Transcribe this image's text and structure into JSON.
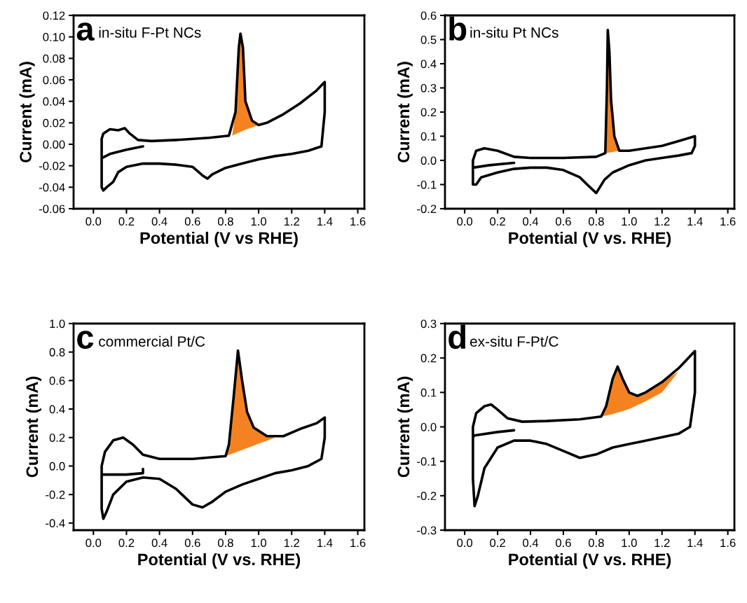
{
  "chart_data": [
    {
      "type": "line",
      "xlabel": "Potential (V vs RHE)",
      "ylabel": "Current (mA)",
      "annotations": [
        "a",
        "in-situ F-Pt NCs"
      ],
      "xlim": [
        -0.12,
        1.64
      ],
      "xticks": [
        {
          "value": 0,
          "label": "0.0"
        },
        {
          "value": 0.2,
          "label": "0.2"
        },
        {
          "value": 0.4,
          "label": "0.4"
        },
        {
          "value": 0.6,
          "label": "0.6"
        },
        {
          "value": 0.8,
          "label": "0.8"
        },
        {
          "value": 1.0,
          "label": "1.0"
        },
        {
          "value": 1.2,
          "label": "1.2"
        },
        {
          "value": 1.4,
          "label": "1.4"
        },
        {
          "value": 1.6,
          "label": "1.6"
        }
      ],
      "ylim": [
        -0.06,
        0.12
      ],
      "yticks": [
        {
          "value": -0.06,
          "label": "-0.06"
        },
        {
          "value": -0.04,
          "label": "-0.04"
        },
        {
          "value": -0.02,
          "label": "-0.02"
        },
        {
          "value": 0,
          "label": "0.00"
        },
        {
          "value": 0.02,
          "label": "0.02"
        },
        {
          "value": 0.04,
          "label": "0.04"
        },
        {
          "value": 0.06,
          "label": "0.06"
        },
        {
          "value": 0.08,
          "label": "0.08"
        },
        {
          "value": 0.1,
          "label": "0.10"
        },
        {
          "value": 0.12,
          "label": "0.12"
        }
      ],
      "series": [
        {
          "color": "#000000",
          "x": [
            0.3,
            0.2,
            0.1,
            0.05,
            0.05,
            0.06,
            0.1,
            0.15,
            0.19,
            0.22,
            0.27,
            0.35,
            0.5,
            0.7,
            0.82,
            0.86,
            0.88,
            0.89,
            0.905,
            0.92,
            0.96,
            1.0,
            1.05,
            1.15,
            1.25,
            1.35,
            1.4,
            1.4,
            1.38,
            1.3,
            1.2,
            1.1,
            1.0,
            0.9,
            0.8,
            0.72,
            0.69,
            0.66,
            0.6,
            0.5,
            0.4,
            0.3,
            0.2,
            0.15,
            0.12,
            0.08,
            0.06,
            0.05,
            0.05
          ],
          "values": [
            -0.002,
            -0.005,
            -0.009,
            -0.013,
            0.005,
            0.01,
            0.014,
            0.013,
            0.015,
            0.01,
            0.004,
            0.003,
            0.004,
            0.006,
            0.008,
            0.03,
            0.09,
            0.103,
            0.09,
            0.04,
            0.022,
            0.018,
            0.02,
            0.028,
            0.038,
            0.05,
            0.058,
            0.03,
            -0.002,
            -0.006,
            -0.009,
            -0.011,
            -0.014,
            -0.018,
            -0.022,
            -0.028,
            -0.032,
            -0.029,
            -0.021,
            -0.019,
            -0.018,
            -0.018,
            -0.021,
            -0.026,
            -0.035,
            -0.04,
            -0.043,
            -0.04,
            -0.005
          ]
        },
        {
          "type": "area",
          "color": "#f58220",
          "x": [
            0.84,
            0.86,
            0.88,
            0.89,
            0.905,
            0.92,
            0.96,
            1.0,
            0.92,
            0.88
          ],
          "values": [
            0.008,
            0.03,
            0.09,
            0.103,
            0.09,
            0.04,
            0.022,
            0.018,
            0.0135,
            0.011
          ]
        }
      ]
    },
    {
      "type": "line",
      "xlabel": "Potential (V vs. RHE)",
      "ylabel": "Current (mA)",
      "annotations": [
        "b",
        "in-situ Pt NCs"
      ],
      "xlim": [
        -0.12,
        1.64
      ],
      "xticks": [
        {
          "value": 0,
          "label": "0.0"
        },
        {
          "value": 0.2,
          "label": "0.2"
        },
        {
          "value": 0.4,
          "label": "0.4"
        },
        {
          "value": 0.6,
          "label": "0.6"
        },
        {
          "value": 0.8,
          "label": "0.8"
        },
        {
          "value": 1.0,
          "label": "1.0"
        },
        {
          "value": 1.2,
          "label": "1.2"
        },
        {
          "value": 1.4,
          "label": "1.4"
        },
        {
          "value": 1.6,
          "label": "1.6"
        }
      ],
      "ylim": [
        -0.2,
        0.6
      ],
      "yticks": [
        {
          "value": -0.2,
          "label": "-0.2"
        },
        {
          "value": -0.1,
          "label": "-0.1"
        },
        {
          "value": 0,
          "label": "0.0"
        },
        {
          "value": 0.1,
          "label": "0.1"
        },
        {
          "value": 0.2,
          "label": "0.2"
        },
        {
          "value": 0.3,
          "label": "0.3"
        },
        {
          "value": 0.4,
          "label": "0.4"
        },
        {
          "value": 0.5,
          "label": "0.5"
        },
        {
          "value": 0.6,
          "label": "0.6"
        }
      ],
      "series": [
        {
          "color": "#000000",
          "x": [
            0.3,
            0.15,
            0.05,
            0.05,
            0.07,
            0.12,
            0.2,
            0.3,
            0.4,
            0.6,
            0.8,
            0.855,
            0.865,
            0.87,
            0.88,
            0.89,
            0.91,
            0.94,
            1.0,
            1.1,
            1.2,
            1.3,
            1.4,
            1.4,
            1.38,
            1.3,
            1.2,
            1.1,
            1.0,
            0.9,
            0.85,
            0.8,
            0.76,
            0.7,
            0.6,
            0.5,
            0.4,
            0.3,
            0.2,
            0.1,
            0.07,
            0.05,
            0.05
          ],
          "values": [
            -0.01,
            -0.02,
            -0.03,
            0.0,
            0.04,
            0.05,
            0.04,
            0.015,
            0.01,
            0.01,
            0.015,
            0.03,
            0.3,
            0.54,
            0.45,
            0.25,
            0.1,
            0.04,
            0.04,
            0.05,
            0.06,
            0.08,
            0.1,
            0.06,
            0.03,
            0.02,
            0.01,
            0.0,
            -0.02,
            -0.05,
            -0.08,
            -0.135,
            -0.11,
            -0.07,
            -0.04,
            -0.03,
            -0.03,
            -0.035,
            -0.05,
            -0.07,
            -0.1,
            -0.1,
            0.0
          ]
        },
        {
          "type": "area",
          "color": "#f58220",
          "x": [
            0.855,
            0.865,
            0.87,
            0.88,
            0.89,
            0.91,
            0.94,
            0.9
          ],
          "values": [
            0.03,
            0.3,
            0.54,
            0.45,
            0.25,
            0.1,
            0.04,
            0.035
          ]
        }
      ]
    },
    {
      "type": "line",
      "xlabel": "Potential (V vs. RHE)",
      "ylabel": "Current (mA)",
      "annotations": [
        "c",
        "commercial Pt/C"
      ],
      "xlim": [
        -0.12,
        1.64
      ],
      "xticks": [
        {
          "value": 0,
          "label": "0.0"
        },
        {
          "value": 0.2,
          "label": "0.2"
        },
        {
          "value": 0.4,
          "label": "0.4"
        },
        {
          "value": 0.6,
          "label": "0.6"
        },
        {
          "value": 0.8,
          "label": "0.8"
        },
        {
          "value": 1.0,
          "label": "1.0"
        },
        {
          "value": 1.2,
          "label": "1.2"
        },
        {
          "value": 1.4,
          "label": "1.4"
        },
        {
          "value": 1.6,
          "label": "1.6"
        }
      ],
      "ylim": [
        -0.45,
        1.0
      ],
      "yticks": [
        {
          "value": -0.4,
          "label": "-0.4"
        },
        {
          "value": -0.2,
          "label": "-0.2"
        },
        {
          "value": 0,
          "label": "0.0"
        },
        {
          "value": 0.2,
          "label": "0.2"
        },
        {
          "value": 0.4,
          "label": "0.4"
        },
        {
          "value": 0.6,
          "label": "0.6"
        },
        {
          "value": 0.8,
          "label": "0.8"
        },
        {
          "value": 1.0,
          "label": "1.0"
        }
      ],
      "series": [
        {
          "color": "#000000",
          "x": [
            0.3,
            0.3,
            0.2,
            0.06,
            0.05,
            0.05,
            0.07,
            0.12,
            0.18,
            0.24,
            0.3,
            0.4,
            0.6,
            0.8,
            0.82,
            0.85,
            0.875,
            0.9,
            0.93,
            0.97,
            1.05,
            1.15,
            1.25,
            1.35,
            1.4,
            1.4,
            1.38,
            1.3,
            1.2,
            1.1,
            1.0,
            0.9,
            0.8,
            0.72,
            0.66,
            0.6,
            0.5,
            0.4,
            0.3,
            0.2,
            0.12,
            0.08,
            0.06,
            0.05,
            0.05
          ],
          "values": [
            -0.02,
            -0.05,
            -0.06,
            -0.06,
            -0.06,
            0.0,
            0.1,
            0.18,
            0.2,
            0.15,
            0.08,
            0.05,
            0.05,
            0.07,
            0.15,
            0.5,
            0.81,
            0.6,
            0.38,
            0.27,
            0.21,
            0.21,
            0.26,
            0.3,
            0.34,
            0.2,
            0.05,
            0.0,
            -0.03,
            -0.05,
            -0.09,
            -0.13,
            -0.18,
            -0.25,
            -0.29,
            -0.27,
            -0.16,
            -0.09,
            -0.08,
            -0.11,
            -0.2,
            -0.32,
            -0.37,
            -0.3,
            0.0
          ]
        },
        {
          "type": "area",
          "color": "#f58220",
          "x": [
            0.8,
            0.82,
            0.85,
            0.875,
            0.9,
            0.93,
            0.97,
            1.05,
            1.1,
            0.95
          ],
          "values": [
            0.07,
            0.15,
            0.5,
            0.81,
            0.6,
            0.38,
            0.27,
            0.21,
            0.2,
            0.135
          ]
        }
      ]
    },
    {
      "type": "line",
      "xlabel": "Potential (V vs. RHE)",
      "ylabel": "Current (mA)",
      "annotations": [
        "d",
        "ex-situ F-Pt/C"
      ],
      "xlim": [
        -0.12,
        1.64
      ],
      "xticks": [
        {
          "value": 0,
          "label": "0.0"
        },
        {
          "value": 0.2,
          "label": "0.2"
        },
        {
          "value": 0.4,
          "label": "0.4"
        },
        {
          "value": 0.6,
          "label": "0.6"
        },
        {
          "value": 0.8,
          "label": "0.8"
        },
        {
          "value": 1.0,
          "label": "1.0"
        },
        {
          "value": 1.2,
          "label": "1.2"
        },
        {
          "value": 1.4,
          "label": "1.4"
        },
        {
          "value": 1.6,
          "label": "1.6"
        }
      ],
      "ylim": [
        -0.3,
        0.3
      ],
      "yticks": [
        {
          "value": -0.3,
          "label": "-0.3"
        },
        {
          "value": -0.2,
          "label": "-0.2"
        },
        {
          "value": -0.1,
          "label": "-0.1"
        },
        {
          "value": 0,
          "label": "0.0"
        },
        {
          "value": 0.1,
          "label": "0.1"
        },
        {
          "value": 0.2,
          "label": "0.2"
        },
        {
          "value": 0.3,
          "label": "0.3"
        }
      ],
      "series": [
        {
          "color": "#000000",
          "x": [
            0.3,
            0.2,
            0.06,
            0.05,
            0.05,
            0.07,
            0.12,
            0.16,
            0.2,
            0.26,
            0.35,
            0.5,
            0.7,
            0.83,
            0.86,
            0.9,
            0.93,
            0.96,
            1.0,
            1.05,
            1.1,
            1.2,
            1.3,
            1.4,
            1.4,
            1.37,
            1.3,
            1.2,
            1.1,
            1.0,
            0.9,
            0.8,
            0.7,
            0.6,
            0.5,
            0.4,
            0.3,
            0.2,
            0.12,
            0.08,
            0.06,
            0.05,
            0.05
          ],
          "values": [
            -0.01,
            -0.015,
            -0.025,
            -0.03,
            0.0,
            0.04,
            0.06,
            0.065,
            0.05,
            0.025,
            0.015,
            0.017,
            0.022,
            0.03,
            0.06,
            0.14,
            0.175,
            0.14,
            0.1,
            0.09,
            0.1,
            0.13,
            0.17,
            0.22,
            0.1,
            0.0,
            -0.02,
            -0.03,
            -0.04,
            -0.05,
            -0.06,
            -0.08,
            -0.09,
            -0.07,
            -0.05,
            -0.04,
            -0.04,
            -0.06,
            -0.12,
            -0.2,
            -0.23,
            -0.15,
            0.0
          ]
        },
        {
          "type": "area",
          "color": "#f58220",
          "x": [
            0.83,
            0.86,
            0.9,
            0.93,
            0.96,
            1.0,
            1.05,
            1.1,
            1.2,
            1.3,
            1.2,
            1.1,
            1.0,
            0.9
          ],
          "values": [
            0.03,
            0.06,
            0.14,
            0.175,
            0.14,
            0.1,
            0.09,
            0.1,
            0.13,
            0.16,
            0.1,
            0.074,
            0.052,
            0.037
          ]
        }
      ]
    }
  ]
}
